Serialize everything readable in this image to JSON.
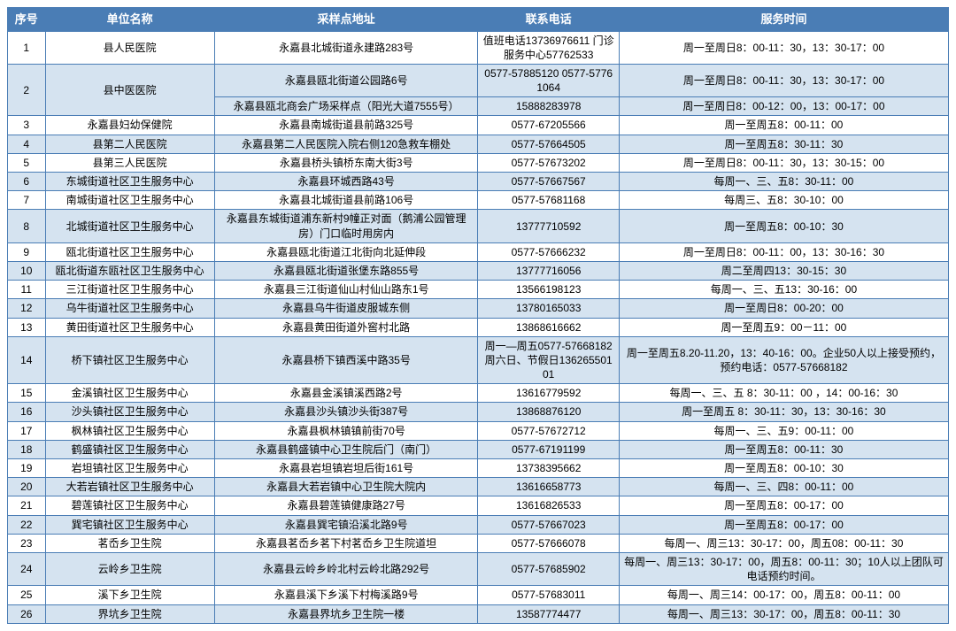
{
  "headers": {
    "idx": "序号",
    "unit": "单位名称",
    "addr": "采样点地址",
    "phone": "联系电话",
    "time": "服务时间"
  },
  "style": {
    "header_bg": "#4a7db5",
    "header_fg": "#ffffff",
    "alt_bg": "#d5e3f0",
    "plain_bg": "#ffffff",
    "border": "#4a7db5",
    "font_size_cell": 12,
    "font_size_header": 13
  },
  "colwidths": {
    "idx": "4%",
    "unit": "18%",
    "addr": "28%",
    "phone": "15%",
    "time": "35%"
  },
  "rows": [
    {
      "idx": "1",
      "unit": "县人民医院",
      "addr": "永嘉县北城街道永建路283号",
      "phone": "值班电话13736976611 门诊服务中心57762533",
      "time": "周一至周日8：00-11：30，13：30-17：00",
      "stripe": "plain"
    },
    {
      "idx": "2",
      "idx_rowspan": 2,
      "unit": "县中医医院",
      "unit_rowspan": 2,
      "addr": "永嘉县瓯北街道公园路6号",
      "phone": "0577-57885120 0577-57761064",
      "time": "周一至周日8：00-11：30，13：30-17：00",
      "stripe": "alt"
    },
    {
      "addr": "永嘉县瓯北商会广场采样点（阳光大道7555号）",
      "phone": "15888283978",
      "time": "周一至周日8：00-12：00，13：00-17：00",
      "stripe": "alt",
      "continuation": true
    },
    {
      "idx": "3",
      "unit": "永嘉县妇幼保健院",
      "addr": "永嘉县南城街道县前路325号",
      "phone": "0577-67205566",
      "time": "周一至周五8：00-11：00",
      "stripe": "plain"
    },
    {
      "idx": "4",
      "unit": "县第二人民医院",
      "addr": "永嘉县第二人民医院入院右侧120急救车棚处",
      "phone": "0577-57664505",
      "time": "周一至周五8：30-11：30",
      "stripe": "alt"
    },
    {
      "idx": "5",
      "unit": "县第三人民医院",
      "addr": "永嘉县桥头镇桥东南大街3号",
      "phone": "0577-57673202",
      "time": "周一至周日8：00-11：30，13：30-15：00",
      "stripe": "plain"
    },
    {
      "idx": "6",
      "unit": "东城街道社区卫生服务中心",
      "addr": "永嘉县环城西路43号",
      "phone": "0577-57667567",
      "time": "每周一、三、五8：30-11：00",
      "stripe": "alt"
    },
    {
      "idx": "7",
      "unit": "南城街道社区卫生服务中心",
      "addr": "永嘉县北城街道县前路106号",
      "phone": "0577-57681168",
      "time": "每周三、五8：30-10：00",
      "stripe": "plain"
    },
    {
      "idx": "8",
      "unit": "北城街道社区卫生服务中心",
      "addr": "永嘉县东城街道浦东新村9幢正对面（鹅浦公园管理房）门口临时用房内",
      "phone": "13777710592",
      "time": "周一至周五8：00-10：30",
      "stripe": "alt"
    },
    {
      "idx": "9",
      "unit": "瓯北街道社区卫生服务中心",
      "addr": "永嘉县瓯北街道江北街向北延伸段",
      "phone": "0577-57666232",
      "time": "周一至周日8：00-11：00，13：30-16：30",
      "stripe": "plain"
    },
    {
      "idx": "10",
      "unit": "瓯北街道东瓯社区卫生服务中心",
      "addr": "永嘉县瓯北街道张堡东路855号",
      "phone": "13777716056",
      "time": "周二至周四13：30-15：30",
      "stripe": "alt"
    },
    {
      "idx": "11",
      "unit": "三江街道社区卫生服务中心",
      "addr": "永嘉县三江街道仙山村仙山路东1号",
      "phone": "13566198123",
      "time": "每周一、三、五13：30-16：00",
      "stripe": "plain"
    },
    {
      "idx": "12",
      "unit": "乌牛街道社区卫生服务中心",
      "addr": "永嘉县乌牛街道皮服城东侧",
      "phone": "13780165033",
      "time": "周一至周日8：00-20：00",
      "stripe": "alt"
    },
    {
      "idx": "13",
      "unit": "黄田街道社区卫生服务中心",
      "addr": "永嘉县黄田街道外窖村北路",
      "phone": "13868616662",
      "time": "周一至周五9：00－11：00",
      "stripe": "plain"
    },
    {
      "idx": "14",
      "unit": "桥下镇社区卫生服务中心",
      "addr": "永嘉县桥下镇西溪中路35号",
      "phone": "周一—周五0577-57668182周六日、节假日13626550101",
      "time": "周一至周五8.20-11.20，13：40-16：00。企业50人以上接受预约，预约电话：0577-57668182",
      "stripe": "alt"
    },
    {
      "idx": "15",
      "unit": "金溪镇社区卫生服务中心",
      "addr": "永嘉县金溪镇溪西路2号",
      "phone": "13616779592",
      "time": "每周一、三、五 8：30-11：00 ，14：00-16：30",
      "stripe": "plain"
    },
    {
      "idx": "16",
      "unit": "沙头镇社区卫生服务中心",
      "addr": "永嘉县沙头镇沙头街387号",
      "phone": "13868876120",
      "time": "周一至周五 8：30-11：30，13：30-16：30",
      "stripe": "alt"
    },
    {
      "idx": "17",
      "unit": "枫林镇社区卫生服务中心",
      "addr": "永嘉县枫林镇镇前街70号",
      "phone": "0577-57672712",
      "time": "每周一、三、五9：00-11：00",
      "stripe": "plain"
    },
    {
      "idx": "18",
      "unit": "鹤盛镇社区卫生服务中心",
      "addr": "永嘉县鹤盛镇中心卫生院后门（南门）",
      "phone": "0577-67191199",
      "time": "周一至周五8：00-11：30",
      "stripe": "alt"
    },
    {
      "idx": "19",
      "unit": "岩坦镇社区卫生服务中心",
      "addr": "永嘉县岩坦镇岩坦后街161号",
      "phone": "13738395662",
      "time": "周一至周五8：00-10：30",
      "stripe": "plain"
    },
    {
      "idx": "20",
      "unit": "大若岩镇社区卫生服务中心",
      "addr": "永嘉县大若岩镇中心卫生院大院内",
      "phone": "13616658773",
      "time": "每周一、三、四8：00-11：00",
      "stripe": "alt"
    },
    {
      "idx": "21",
      "unit": "碧莲镇社区卫生服务中心",
      "addr": "永嘉县碧莲镇健康路27号",
      "phone": "13616826533",
      "time": "周一至周五8：00-17：00",
      "stripe": "plain"
    },
    {
      "idx": "22",
      "unit": "巽宅镇社区卫生服务中心",
      "addr": "永嘉县巽宅镇沿溪北路9号",
      "phone": "0577-57667023",
      "time": "周一至周五8：00-17：00",
      "stripe": "alt"
    },
    {
      "idx": "23",
      "unit": "茗岙乡卫生院",
      "addr": "永嘉县茗岙乡茗下村茗岙乡卫生院道坦",
      "phone": "0577-57666078",
      "time": "每周一、周三13：30-17：00，周五08：00-11：30",
      "stripe": "plain"
    },
    {
      "idx": "24",
      "unit": "云岭乡卫生院",
      "addr": "永嘉县云岭乡岭北村云岭北路292号",
      "phone": "0577-57685902",
      "time": "每周一、周三13：30-17：00，周五8：00-11：30；10人以上团队可电话预约时间。",
      "stripe": "alt"
    },
    {
      "idx": "25",
      "unit": "溪下乡卫生院",
      "addr": "永嘉县溪下乡溪下村梅溪路9号",
      "phone": "0577-57683011",
      "time": "每周一、周三14：00-17：00，周五8：00-11：00",
      "stripe": "plain"
    },
    {
      "idx": "26",
      "unit": "界坑乡卫生院",
      "addr": "永嘉县界坑乡卫生院一楼",
      "phone": "13587774477",
      "time": "每周一、周三13：30-17：00，周五8：00-11：30",
      "stripe": "alt"
    }
  ]
}
